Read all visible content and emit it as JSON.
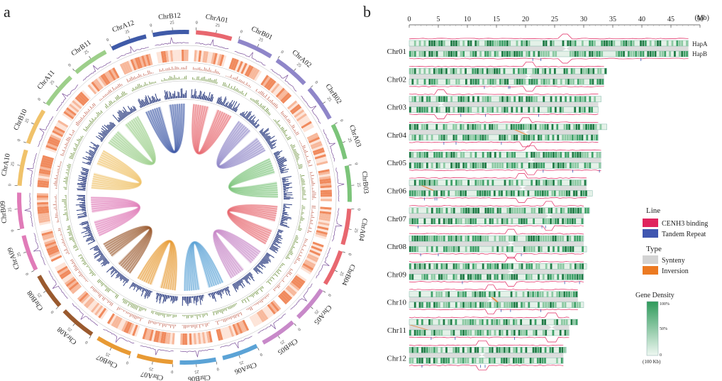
{
  "panel_a": {
    "label": "a",
    "tick_labels": [
      "0",
      "25"
    ],
    "chromosomes": [
      {
        "name": "ChrA01",
        "color": "#e8676f"
      },
      {
        "name": "ChrB01",
        "color": "#8f86c9"
      },
      {
        "name": "ChrA02",
        "color": "#8f86c9"
      },
      {
        "name": "ChrB02",
        "color": "#8f86c9"
      },
      {
        "name": "ChrA03",
        "color": "#7cc47a"
      },
      {
        "name": "ChrB03",
        "color": "#7cc47a"
      },
      {
        "name": "ChrA04",
        "color": "#e8676f"
      },
      {
        "name": "ChrB04",
        "color": "#e8676f"
      },
      {
        "name": "ChrA05",
        "color": "#c889c9"
      },
      {
        "name": "ChrB05",
        "color": "#c889c9"
      },
      {
        "name": "ChrA06",
        "color": "#5ba3d6"
      },
      {
        "name": "ChrB06",
        "color": "#5ba3d6"
      },
      {
        "name": "ChrA07",
        "color": "#e89a34"
      },
      {
        "name": "ChrB07",
        "color": "#e89a34"
      },
      {
        "name": "ChrA08",
        "color": "#9a5a2e"
      },
      {
        "name": "ChrB08",
        "color": "#9a5a2e"
      },
      {
        "name": "ChrA09",
        "color": "#e07bb8"
      },
      {
        "name": "ChrB09",
        "color": "#e07bb8"
      },
      {
        "name": "ChrA10",
        "color": "#f0c26a"
      },
      {
        "name": "ChrB10",
        "color": "#f0c26a"
      },
      {
        "name": "ChrA11",
        "color": "#9dcf8a"
      },
      {
        "name": "ChrB11",
        "color": "#9dcf8a"
      },
      {
        "name": "ChrA12",
        "color": "#3f5aa8"
      },
      {
        "name": "ChrB12",
        "color": "#3f5aa8"
      }
    ],
    "links": [
      {
        "from": 0,
        "to": 1,
        "color": "#e8676f"
      },
      {
        "from": 2,
        "to": 3,
        "color": "#8f86c9"
      },
      {
        "from": 4,
        "to": 5,
        "color": "#7cc47a"
      },
      {
        "from": 6,
        "to": 7,
        "color": "#e8676f"
      },
      {
        "from": 8,
        "to": 9,
        "color": "#c889c9"
      },
      {
        "from": 10,
        "to": 11,
        "color": "#5ba3d6"
      },
      {
        "from": 12,
        "to": 13,
        "color": "#e89a34"
      },
      {
        "from": 14,
        "to": 15,
        "color": "#9a5a2e"
      },
      {
        "from": 16,
        "to": 17,
        "color": "#e07bb8"
      },
      {
        "from": 18,
        "to": 19,
        "color": "#f0c26a"
      },
      {
        "from": 20,
        "to": 21,
        "color": "#9dcf8a"
      },
      {
        "from": 22,
        "to": 23,
        "color": "#3f5aa8"
      }
    ]
  },
  "chart_data": {
    "type": "bar",
    "panel_label": "b",
    "xlim": [
      0,
      50
    ],
    "x_ticks": [
      0,
      5,
      10,
      15,
      20,
      25,
      30,
      35,
      40,
      45,
      50
    ],
    "x_unit": "(Mb)",
    "chromosomes": [
      {
        "name": "Chr01",
        "hapA_length": 48.0,
        "hapB_length": 48.0,
        "centromere": 27.0
      },
      {
        "name": "Chr02",
        "hapA_length": 34.0,
        "hapB_length": 33.5,
        "centromere": 20.5
      },
      {
        "name": "Chr03",
        "hapA_length": 33.0,
        "hapB_length": 32.5,
        "centromere": 5.5
      },
      {
        "name": "Chr04",
        "hapA_length": 34.0,
        "hapB_length": 32.5,
        "centromere": 20.0
      },
      {
        "name": "Chr05",
        "hapA_length": 33.0,
        "hapB_length": 33.0,
        "centromere": 21.0
      },
      {
        "name": "Chr06",
        "hapA_length": 30.5,
        "hapB_length": 31.5,
        "centromere": 19.5
      },
      {
        "name": "Chr07",
        "hapA_length": 31.0,
        "hapB_length": 30.0,
        "centromere": 24.0
      },
      {
        "name": "Chr08",
        "hapA_length": 30.0,
        "hapB_length": 30.5,
        "centromere": 17.5
      },
      {
        "name": "Chr09",
        "hapA_length": 30.5,
        "hapB_length": 30.0,
        "centromere": 17.5
      },
      {
        "name": "Chr10",
        "hapA_length": 29.0,
        "hapB_length": 30.0,
        "centromere": 14.0
      },
      {
        "name": "Chr11",
        "hapA_length": 29.0,
        "hapB_length": 27.5,
        "centromere": 24.5
      },
      {
        "name": "Chr12",
        "hapA_length": 27.0,
        "hapB_length": 26.5,
        "centromere": 12.5
      }
    ],
    "hap_labels": [
      "HapA",
      "HapB"
    ],
    "legend": {
      "line_title": "Line",
      "line_items": [
        {
          "label": "CENH3 binding",
          "color": "#e0245e"
        },
        {
          "label": "Tandem Repeat",
          "color": "#3f56b0"
        }
      ],
      "type_title": "Type",
      "type_items": [
        {
          "label": "Synteny",
          "color": "#d3d3d3"
        },
        {
          "label": "Inversion",
          "color": "#ec7a22"
        }
      ],
      "density_title": "Gene Density",
      "density_high": "100%",
      "density_mid": "50%",
      "density_low": "0",
      "density_unit": "(100 Kb)",
      "density_color": "#2e9a5a"
    }
  }
}
